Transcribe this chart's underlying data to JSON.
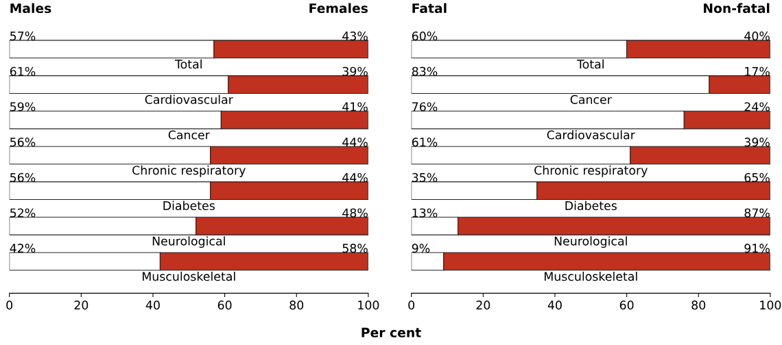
{
  "chart_data": [
    {
      "type": "bar",
      "orientation": "horizontal",
      "stacked": true,
      "xlabel": "Per cent",
      "categories": [
        "Total",
        "Cardiovascular",
        "Cancer",
        "Chronic respiratory",
        "Diabetes",
        "Neurological",
        "Musculoskeletal"
      ],
      "xlim": [
        0,
        100
      ],
      "xticks": [
        0,
        20,
        40,
        60,
        80,
        100
      ],
      "grid": false,
      "tick_labels": "x",
      "series": [
        {
          "name": "Males",
          "color": "#ffffff",
          "values": [
            57,
            61,
            59,
            56,
            56,
            52,
            42
          ],
          "value_labels": [
            "57%",
            "61%",
            "59%",
            "56%",
            "56%",
            "52%",
            "42%"
          ]
        },
        {
          "name": "Females",
          "color": "#c0311f",
          "values": [
            43,
            39,
            41,
            44,
            44,
            48,
            58
          ],
          "value_labels": [
            "43%",
            "39%",
            "41%",
            "44%",
            "44%",
            "48%",
            "58%"
          ]
        }
      ]
    },
    {
      "type": "bar",
      "orientation": "horizontal",
      "stacked": true,
      "categories": [
        "Total",
        "Cancer",
        "Cardiovascular",
        "Chronic respiratory",
        "Diabetes",
        "Neurological",
        "Musculoskeletal"
      ],
      "xlim": [
        0,
        100
      ],
      "xticks": [
        0,
        20,
        40,
        60,
        80,
        100
      ],
      "grid": false,
      "tick_labels": "x",
      "series": [
        {
          "name": "Fatal",
          "color": "#ffffff",
          "values": [
            60,
            83,
            76,
            61,
            35,
            13,
            9
          ],
          "value_labels": [
            "60%",
            "83%",
            "76%",
            "61%",
            "35%",
            "13%",
            "9%"
          ]
        },
        {
          "name": "Non-fatal",
          "color": "#c0311f",
          "values": [
            40,
            17,
            24,
            39,
            65,
            87,
            91
          ],
          "value_labels": [
            "40%",
            "17%",
            "24%",
            "39%",
            "65%",
            "87%",
            "91%"
          ]
        }
      ]
    }
  ]
}
